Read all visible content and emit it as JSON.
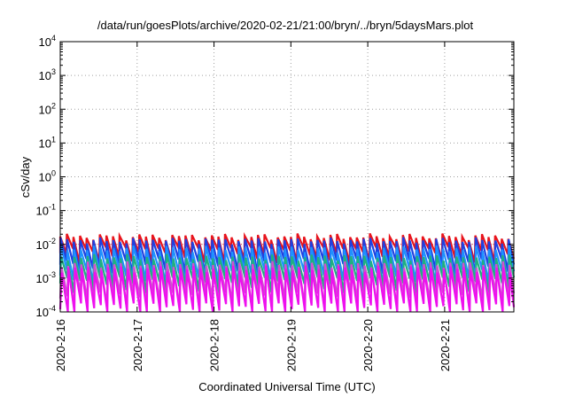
{
  "chart_data": {
    "type": "line",
    "title": "/data/run/goesPlots/archive/2020-02-21/21:00/bryn/../bryn/5daysMars.plot",
    "xlabel": "Coordinated Universal Time (UTC)",
    "ylabel": "cSv/day",
    "yscale": "log",
    "ylim": [
      0.0001,
      10000
    ],
    "xlim_days": [
      0,
      5.9
    ],
    "x_ticks": [
      {
        "label": "2020-2-16",
        "day": 0
      },
      {
        "label": "2020-2-17",
        "day": 1
      },
      {
        "label": "2020-2-18",
        "day": 2
      },
      {
        "label": "2020-2-19",
        "day": 3
      },
      {
        "label": "2020-2-20",
        "day": 4
      },
      {
        "label": "2020-2-21",
        "day": 5
      }
    ],
    "y_ticks": [
      {
        "base": "10",
        "exp": "-4",
        "value": 0.0001
      },
      {
        "base": "10",
        "exp": "-3",
        "value": 0.001
      },
      {
        "base": "10",
        "exp": "-2",
        "value": 0.01
      },
      {
        "base": "10",
        "exp": "-1",
        "value": 0.1
      },
      {
        "base": "10",
        "exp": "0",
        "value": 1
      },
      {
        "base": "10",
        "exp": "1",
        "value": 10
      },
      {
        "base": "10",
        "exp": "2",
        "value": 100
      },
      {
        "base": "10",
        "exp": "3",
        "value": 1000
      },
      {
        "base": "10",
        "exp": "4",
        "value": 10000
      }
    ],
    "grid": true,
    "cycle_days": 0.0857,
    "series": [
      {
        "color": "#e8141c",
        "peak": 0.017,
        "trough": 0.0055,
        "offset": 0.0
      },
      {
        "color": "#2040e0",
        "peak": 0.013,
        "trough": 0.0025,
        "offset": 0.004
      },
      {
        "color": "#1e90ff",
        "peak": 0.0075,
        "trough": 0.0012,
        "offset": 0.008
      },
      {
        "color": "#20b080",
        "peak": 0.0042,
        "trough": 0.0007,
        "offset": 0.012
      },
      {
        "color": "#d050d0",
        "peak": 0.0026,
        "trough": 0.00025,
        "offset": 0.016
      },
      {
        "color": "#ee10ee",
        "peak": 0.0019,
        "trough": 0.00012,
        "offset": 0.02
      }
    ],
    "ref_line": {
      "value": 0.01,
      "color": "#e8141c"
    }
  }
}
